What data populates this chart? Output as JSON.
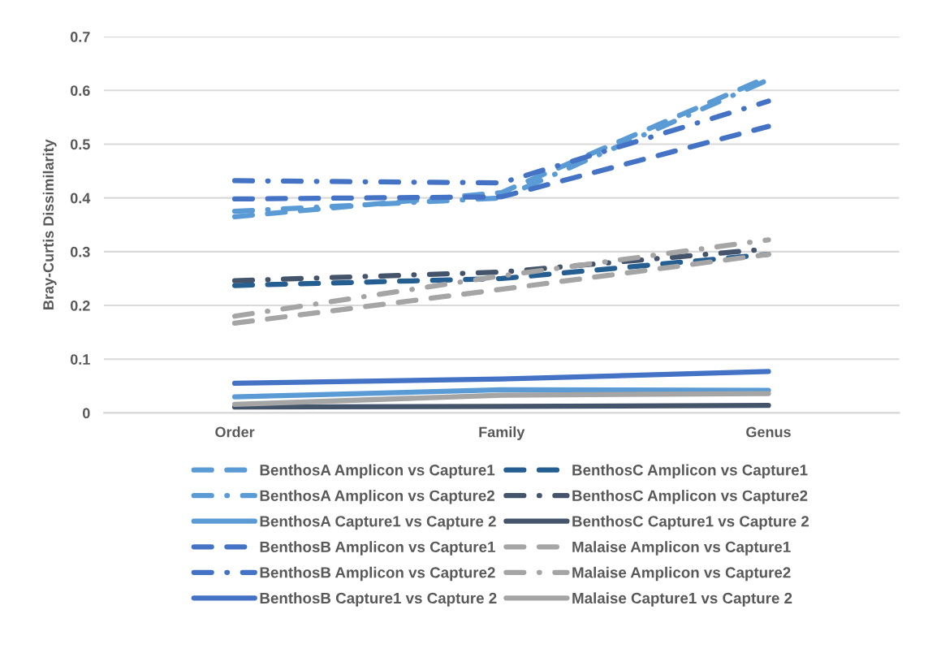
{
  "chart_data": {
    "type": "line",
    "ylabel": "Bray-Curtis Dissimilarity",
    "categories": [
      "Order",
      "Family",
      "Genus"
    ],
    "ylim": [
      0,
      0.7
    ],
    "yticks": [
      {
        "value": 0,
        "label": "0"
      },
      0.1,
      0.2,
      0.3,
      0.4,
      0.5,
      0.6,
      0.7
    ],
    "grid": "y",
    "legend": "bottom",
    "marker": "none",
    "series": [
      {
        "name": "BenthosA Amplicon vs Capture1",
        "color": "#5b9bd5",
        "line_style": "dashed",
        "values": [
          0.365,
          0.41,
          0.625
        ]
      },
      {
        "name": "BenthosA Amplicon vs Capture2",
        "color": "#5b9bd5",
        "line_style": "dashdot",
        "values": [
          0.375,
          0.4,
          0.62
        ]
      },
      {
        "name": "BenthosA Capture1 vs Capture 2",
        "color": "#5b9bd5",
        "line_style": "solid",
        "values": [
          0.03,
          0.043,
          0.042
        ]
      },
      {
        "name": "BenthosB Amplicon vs Capture1",
        "color": "#4472c4",
        "line_style": "dashed",
        "values": [
          0.398,
          0.402,
          0.533
        ]
      },
      {
        "name": "BenthosB Amplicon vs Capture2",
        "color": "#4472c4",
        "line_style": "dashdot",
        "values": [
          0.432,
          0.428,
          0.58
        ]
      },
      {
        "name": "BenthosB Capture1 vs Capture 2",
        "color": "#4472c4",
        "line_style": "solid",
        "values": [
          0.055,
          0.063,
          0.077
        ]
      },
      {
        "name": "BenthosC Amplicon vs Capture1",
        "color": "#255e91",
        "line_style": "dashed",
        "values": [
          0.237,
          0.25,
          0.295
        ]
      },
      {
        "name": "BenthosC Amplicon vs Capture2",
        "color": "#44546a",
        "line_style": "dashdot",
        "values": [
          0.246,
          0.262,
          0.305
        ]
      },
      {
        "name": "BenthosC Capture1 vs Capture 2",
        "color": "#44546a",
        "line_style": "solid",
        "values": [
          0.011,
          0.012,
          0.014
        ]
      },
      {
        "name": "Malaise Amplicon vs Capture1",
        "color": "#a5a5a5",
        "line_style": "dashed",
        "values": [
          0.167,
          0.23,
          0.295
        ]
      },
      {
        "name": "Malaise Amplicon vs Capture2",
        "color": "#a5a5a5",
        "line_style": "dashdot",
        "values": [
          0.18,
          0.255,
          0.322
        ]
      },
      {
        "name": "Malaise Capture1 vs Capture 2",
        "color": "#a5a5a5",
        "line_style": "solid",
        "values": [
          0.016,
          0.033,
          0.036
        ]
      }
    ]
  }
}
